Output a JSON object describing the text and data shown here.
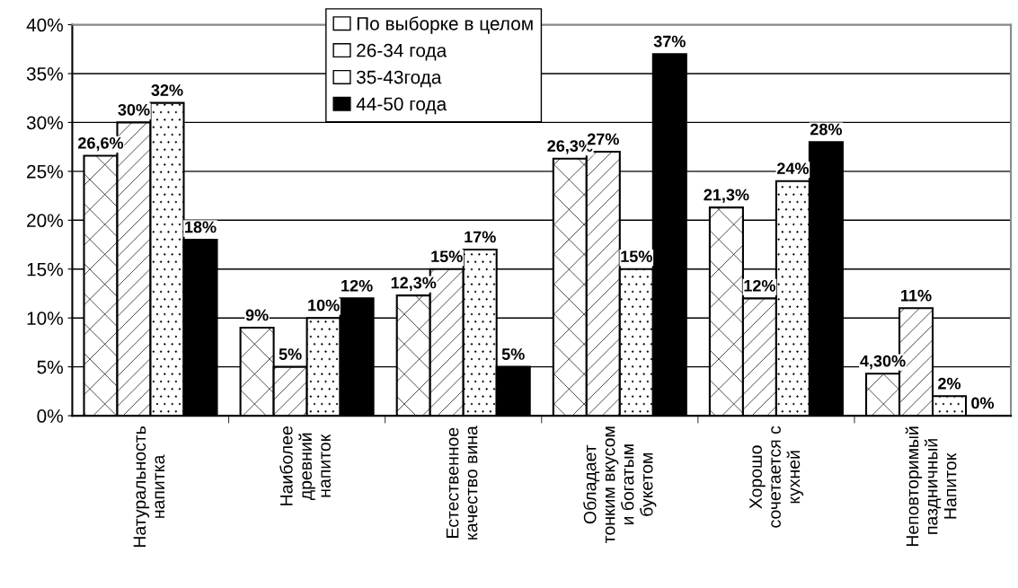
{
  "chart_data": {
    "type": "bar",
    "categories": [
      "Натуральность\nнапитка",
      "Наиболее\nдревний\nнапиток",
      "Естественное\nкачество вина",
      "Обладает\nтонким вкусом\nи богатым\nбукетом",
      "Хорошо\nсочетается с\nкухней",
      "Неповторимый\nпаздничный\nНапиток"
    ],
    "series": [
      {
        "name": "По выборке в целом",
        "color": "#ffffff",
        "values": [
          26.6,
          9,
          12.3,
          26.3,
          21.3,
          4.3
        ],
        "value_labels": [
          "26,6%",
          "9%",
          "12,3%",
          "26,3%",
          "21,3%",
          "4,30%"
        ]
      },
      {
        "name": "26-34 года",
        "color": "#ffffff",
        "values": [
          30,
          5,
          15,
          27,
          12,
          11
        ],
        "value_labels": [
          "30%",
          "5%",
          "15%",
          "27%",
          "12%",
          "11%"
        ]
      },
      {
        "name": "35-43года",
        "color": "#ffffff",
        "values": [
          32,
          10,
          17,
          15,
          24,
          2
        ],
        "value_labels": [
          "32%",
          "10%",
          "17%",
          "15%",
          "24%",
          "2%"
        ]
      },
      {
        "name": "44-50 года",
        "color": "#000000",
        "values": [
          18,
          12,
          5,
          37,
          28,
          0
        ],
        "value_labels": [
          "18%",
          "12%",
          "5%",
          "37%",
          "28%",
          "0%"
        ]
      }
    ],
    "ylim": [
      0,
      40
    ],
    "yticks": [
      {
        "value": 0,
        "label": "0%"
      },
      {
        "value": 5,
        "label": "5%"
      },
      {
        "value": 10,
        "label": "10%"
      },
      {
        "value": 15,
        "label": "15%"
      },
      {
        "value": 20,
        "label": "20%"
      },
      {
        "value": 25,
        "label": "25%"
      },
      {
        "value": 30,
        "label": "30%"
      },
      {
        "value": 35,
        "label": "35%"
      },
      {
        "value": 40,
        "label": "40%"
      }
    ],
    "grid": "y",
    "legend": "top"
  }
}
